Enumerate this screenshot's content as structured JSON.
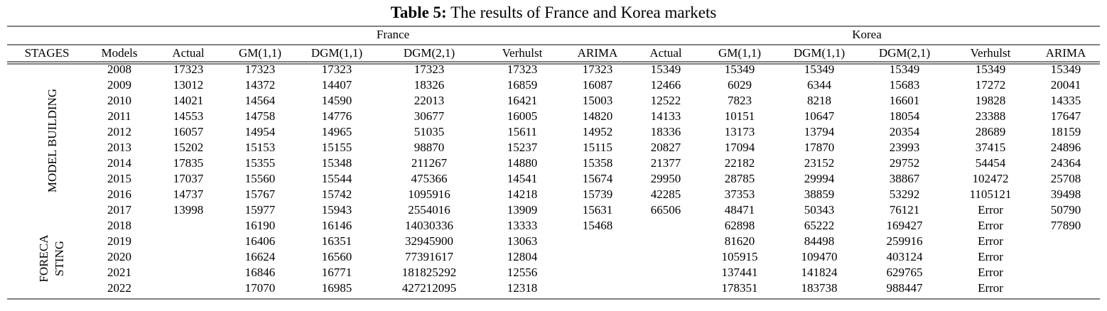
{
  "table": {
    "title": {
      "label": "Table 5:",
      "text": "The results of France and Korea markets"
    },
    "groups": [
      "France",
      "Korea"
    ],
    "columns": [
      "STAGES",
      "Models",
      "Actual",
      "GM(1,1)",
      "DGM(1,1)",
      "DGM(2,1)",
      "Verhulst",
      "ARIMA",
      "Actual",
      "GM(1,1)",
      "DGM(1,1)",
      "DGM(2,1)",
      "Verhulst",
      "ARIMA"
    ],
    "stages": [
      {
        "label": [
          "MODEL BUILDING"
        ]
      },
      {
        "label": [
          "FORECA",
          "STING"
        ]
      }
    ],
    "rows": [
      [
        2008,
        17323,
        17323,
        17323,
        17323,
        17323,
        17323,
        15349,
        15349,
        15349,
        15349,
        15349,
        15349
      ],
      [
        2009,
        13012,
        14372,
        14407,
        18326,
        16859,
        16087,
        12466,
        6029,
        6344,
        15683,
        17272,
        20041
      ],
      [
        2010,
        14021,
        14564,
        14590,
        22013,
        16421,
        15003,
        12522,
        7823,
        8218,
        16601,
        19828,
        14335
      ],
      [
        2011,
        14553,
        14758,
        14776,
        30677,
        16005,
        14820,
        14133,
        10151,
        10647,
        18054,
        23388,
        17647
      ],
      [
        2012,
        16057,
        14954,
        14965,
        51035,
        15611,
        14952,
        18336,
        13173,
        13794,
        20354,
        28689,
        18159
      ],
      [
        2013,
        15202,
        15153,
        15155,
        98870,
        15237,
        15115,
        20827,
        17094,
        17870,
        23993,
        37415,
        24896
      ],
      [
        2014,
        17835,
        15355,
        15348,
        211267,
        14880,
        15358,
        21377,
        22182,
        23152,
        29752,
        54454,
        24364
      ],
      [
        2015,
        17037,
        15560,
        15544,
        475366,
        14541,
        15674,
        29950,
        28785,
        29994,
        38867,
        102472,
        25708
      ],
      [
        2016,
        14737,
        15767,
        15742,
        1095916,
        14218,
        15739,
        42285,
        37353,
        38859,
        53292,
        1105121,
        39498
      ],
      [
        2017,
        13998,
        15977,
        15943,
        2554016,
        13909,
        15631,
        66506,
        48471,
        50343,
        76121,
        "Error",
        50790
      ],
      [
        2018,
        null,
        16190,
        16146,
        14030336,
        13333,
        15468,
        null,
        62898,
        65222,
        169427,
        "Error",
        77890
      ],
      [
        2019,
        null,
        16406,
        16351,
        32945900,
        13063,
        null,
        null,
        81620,
        84498,
        259916,
        "Error",
        null
      ],
      [
        2020,
        null,
        16624,
        16560,
        77391617,
        12804,
        null,
        null,
        105915,
        109470,
        403124,
        "Error",
        null
      ],
      [
        2021,
        null,
        16846,
        16771,
        181825292,
        12556,
        null,
        null,
        137441,
        141824,
        629765,
        "Error",
        null
      ],
      [
        2022,
        null,
        17070,
        16985,
        427212095,
        12318,
        null,
        null,
        178351,
        183738,
        988447,
        "Error",
        null
      ]
    ]
  }
}
